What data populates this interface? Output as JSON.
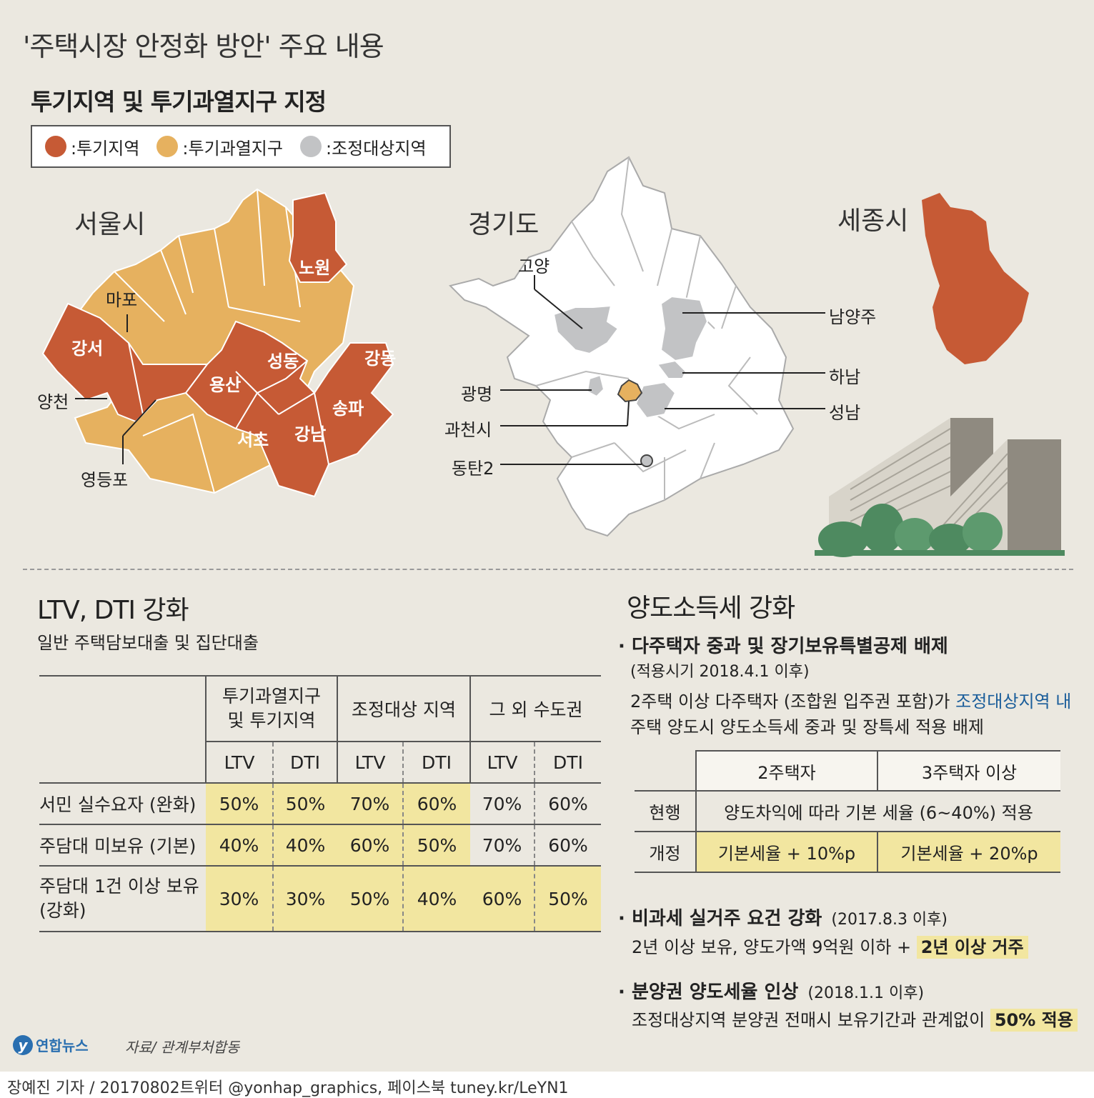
{
  "title": "'주택시장 안정화 방안' 주요 내용",
  "designation": {
    "heading": "투기지역 및 투기과열지구 지정",
    "legend": [
      {
        "label": ":투기지역",
        "color": "#c65a35"
      },
      {
        "label": ":투기과열지구",
        "color": "#e6b15f"
      },
      {
        "label": ":조정대상지역",
        "color": "#c2c3c5"
      }
    ]
  },
  "seoul": {
    "title": "서울시",
    "speculation_districts": [
      "노원",
      "강서",
      "성동",
      "용산",
      "강동",
      "송파",
      "서초",
      "강남"
    ],
    "pointer_labels": [
      "마포",
      "양천",
      "영등포"
    ]
  },
  "gyeonggi": {
    "title": "경기도",
    "labels": [
      "고양",
      "남양주",
      "하남",
      "광명",
      "성남",
      "과천시",
      "동탄2"
    ]
  },
  "sejong": {
    "title": "세종시"
  },
  "ltv": {
    "heading": "LTV, DTI 강화",
    "subtitle": "일반 주택담보대출 및 집단대출",
    "groups": [
      "투기과열지구\n및 투기지역",
      "조정대상 지역",
      "그 외 수도권"
    ],
    "sub_headers": [
      "LTV",
      "DTI",
      "LTV",
      "DTI",
      "LTV",
      "DTI"
    ],
    "rows": [
      {
        "label": "서민 실수요자 (완화)",
        "values": [
          "50%",
          "50%",
          "70%",
          "60%",
          "70%",
          "60%"
        ]
      },
      {
        "label": "주담대 미보유 (기본)",
        "values": [
          "40%",
          "40%",
          "60%",
          "50%",
          "70%",
          "60%"
        ]
      },
      {
        "label": "주담대 1건 이상 보유\n(강화)",
        "values": [
          "30%",
          "30%",
          "50%",
          "40%",
          "60%",
          "50%"
        ]
      }
    ]
  },
  "tax": {
    "heading": "양도소득세 강화",
    "item1": {
      "title": "다주택자 중과 및 장기보유특별공제 배제",
      "date": "(적용시기 2018.4.1 이후)",
      "desc1": "2주택 이상 다주택자 (조합원 입주권 포함)가 ",
      "desc_highlight": "조정대상지역 내",
      "desc2": "주택 양도시 양도소득세 중과 및 장특세 적용 배제"
    },
    "table": {
      "headers": [
        "2주택자",
        "3주택자 이상"
      ],
      "current_label": "현행",
      "current_value": "양도차익에 따라 기본 세율 (6~40%) 적용",
      "revised_label": "개정",
      "revised_values": [
        "기본세율 + 10%p",
        "기본세율 + 20%p"
      ]
    },
    "item2": {
      "title": "비과세 실거주 요건 강화",
      "date": "(2017.8.3 이후)",
      "desc": "2년 이상 보유, 양도가액 9억원 이하 + ",
      "highlight": "2년 이상 거주"
    },
    "item3": {
      "title": "분양권 양도세율 인상",
      "date": "(2018.1.1 이후)",
      "desc": "조정대상지역 분양권 전매시 보유기간과 관계없이 ",
      "highlight": "50% 적용"
    }
  },
  "footer": {
    "logo": "연합뉴스",
    "source": "자료/ 관계부처합동",
    "credit": "장예진 기자 / 20170802트위터 @yonhap_graphics, 페이스북 tuney.kr/LeYN1"
  }
}
